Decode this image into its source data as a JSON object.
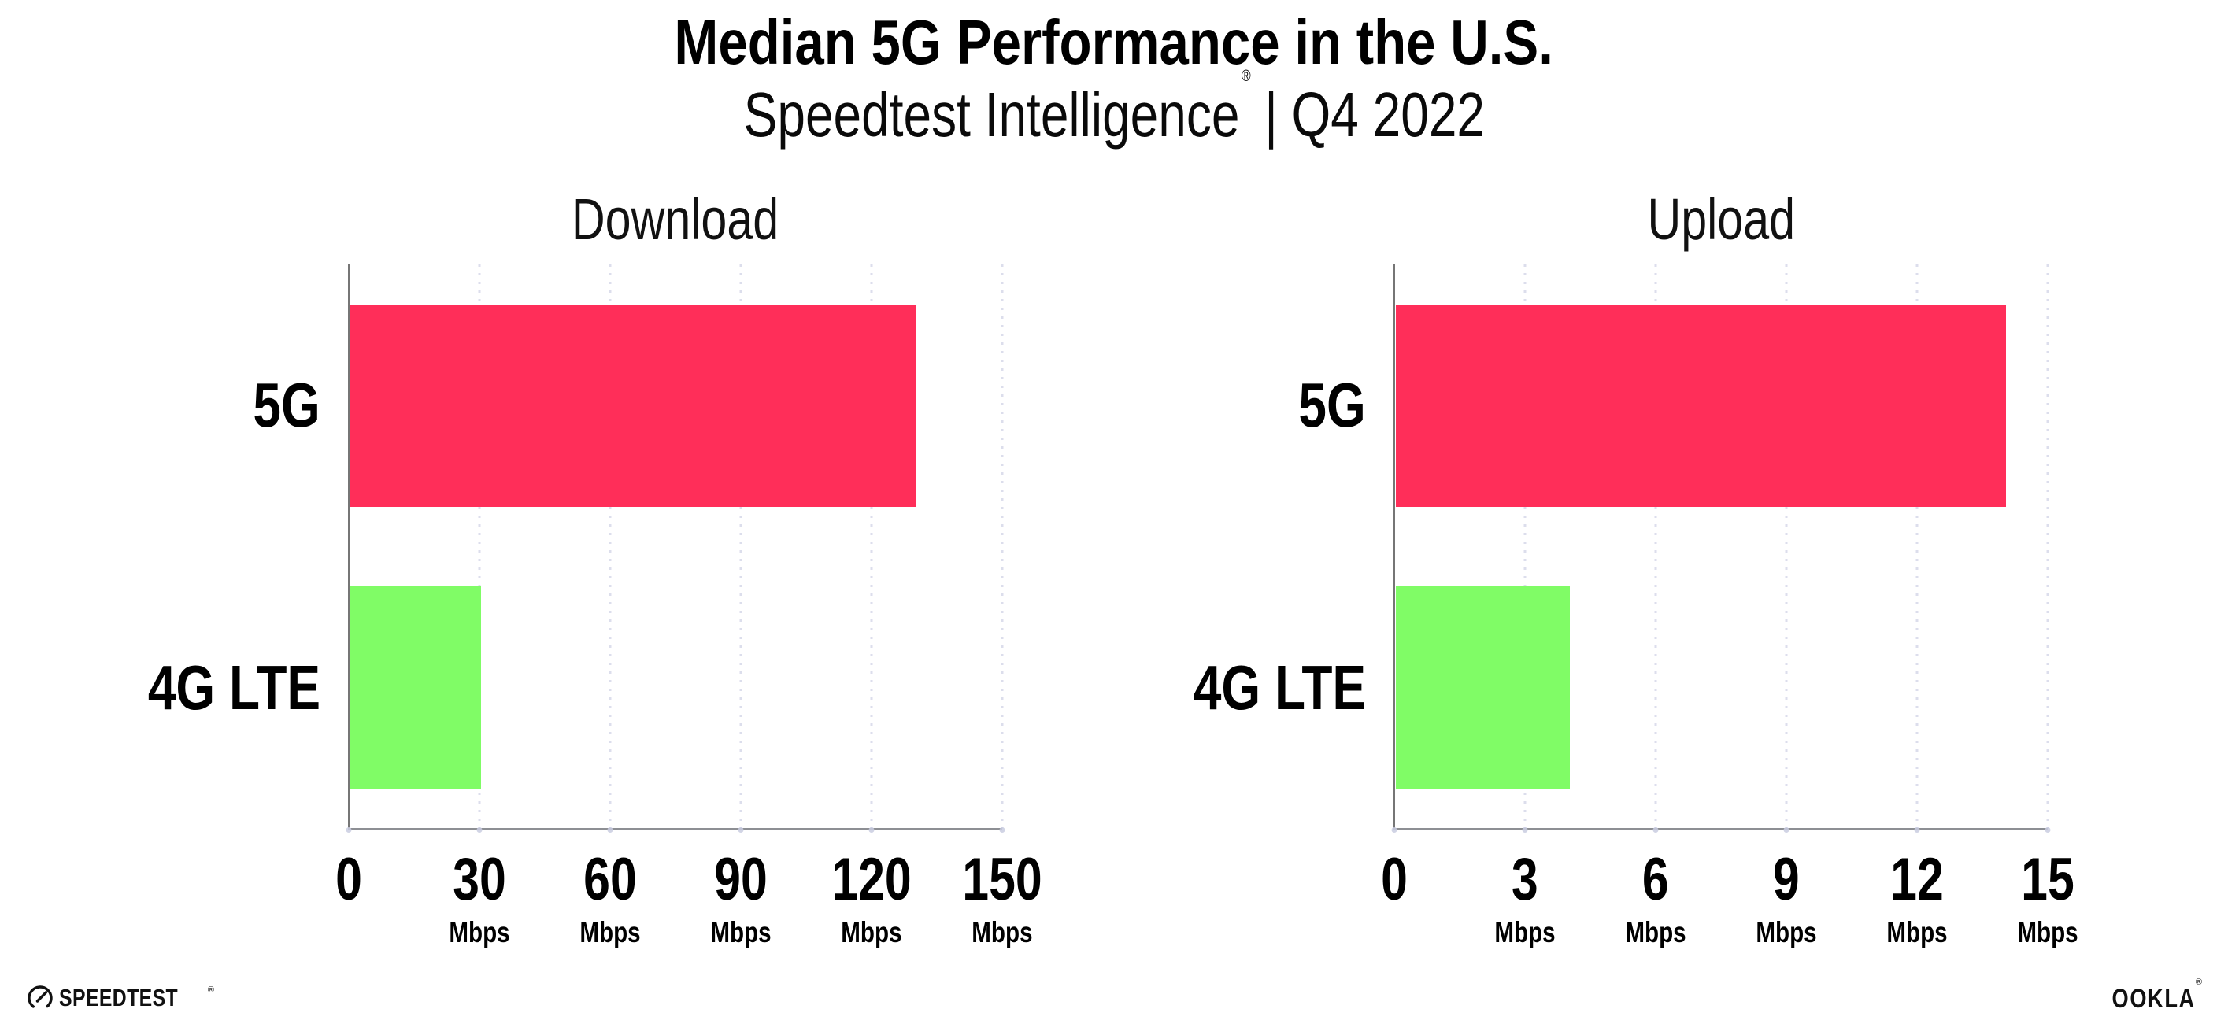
{
  "header": {
    "title": "Median 5G Performance in the U.S.",
    "subtitle_brand": "Speedtest Intelligence",
    "subtitle_mark": "®",
    "subtitle_sep": "|",
    "subtitle_period": "Q4 2022"
  },
  "chart_data": [
    {
      "type": "bar",
      "orientation": "horizontal",
      "title": "Download",
      "categories": [
        "5G",
        "4G LTE"
      ],
      "values": [
        130,
        30
      ],
      "unit": "Mbps",
      "xlabel": "Mbps",
      "xlim": [
        0,
        150
      ],
      "xticks": [
        0,
        30,
        60,
        90,
        120,
        150
      ],
      "bar_colors": [
        "#ff2e59",
        "#80fc66"
      ],
      "grid": "dotted-vertical",
      "legend": "none"
    },
    {
      "type": "bar",
      "orientation": "horizontal",
      "title": "Upload",
      "categories": [
        "5G",
        "4G LTE"
      ],
      "values": [
        14,
        4
      ],
      "unit": "Mbps",
      "xlabel": "Mbps",
      "xlim": [
        0,
        15
      ],
      "xticks": [
        0,
        3,
        6,
        9,
        12,
        15
      ],
      "bar_colors": [
        "#ff2e59",
        "#80fc66"
      ],
      "grid": "dotted-vertical",
      "legend": "none"
    }
  ],
  "footer": {
    "speedtest_label": "SPEEDTEST",
    "speedtest_mark": "®",
    "ookla_label": "OOKLA",
    "ookla_mark": "®"
  },
  "colors": {
    "accent_pink": "#ff2e59",
    "accent_green": "#80fc66",
    "grid_dot": "#dcdeec",
    "x_axis": "#8d8f94",
    "y_axis": "#767676",
    "text": "#000000"
  }
}
